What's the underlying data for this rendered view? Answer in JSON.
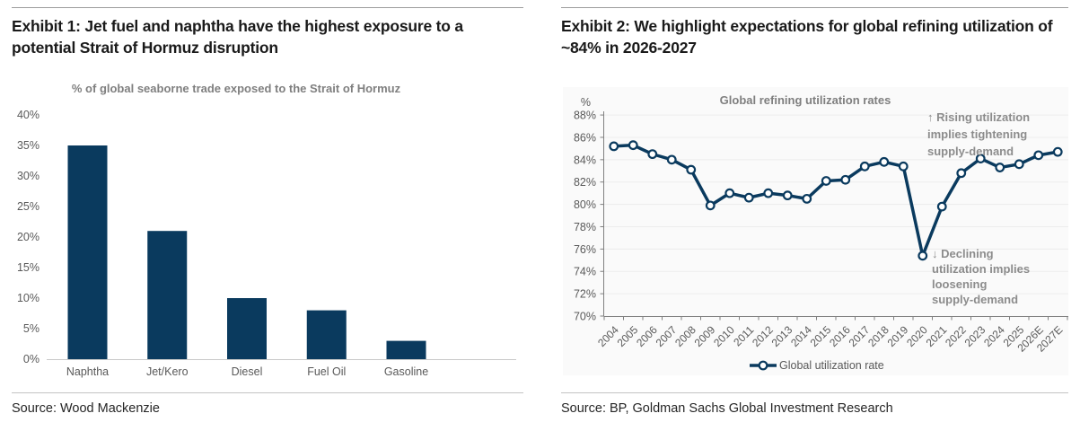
{
  "exhibit1": {
    "title": "Exhibit 1: Jet fuel and naphtha have the highest exposure to a potential Strait of Hormuz disruption",
    "source": "Source: Wood Mackenzie"
  },
  "exhibit2": {
    "title": "Exhibit 2: We highlight expectations for global refining utilization of ~84% in 2026-2027",
    "source": "Source: BP, Goldman Sachs Global Investment Research"
  },
  "colors": {
    "navy": "#0a3a5e",
    "axis_gray": "#808080",
    "label_gray": "#595959",
    "title_gray": "#7f7f7f",
    "annotation_gray": "#8c8c8c",
    "panel_bg": "#fafafa",
    "gridline": "#ededed",
    "baseline_gray": "#c9c9c9"
  },
  "chart_data": [
    {
      "type": "bar",
      "title": "% of global seaborne trade exposed to the Strait of Hormuz",
      "categories": [
        "Naphtha",
        "Jet/Kero",
        "Diesel",
        "Fuel Oil",
        "Gasoline"
      ],
      "values": [
        35,
        21,
        10,
        8,
        3
      ],
      "xlabel": "",
      "ylabel": "",
      "ylim": [
        0,
        40
      ],
      "ytick_step": 5,
      "ytick_suffix": "%",
      "grid": false,
      "legend": false
    },
    {
      "type": "line",
      "title": "Global refining utilization rates",
      "y_unit_label": "%",
      "categories": [
        "2004",
        "2005",
        "2006",
        "2007",
        "2008",
        "2009",
        "2010",
        "2011",
        "2012",
        "2013",
        "2014",
        "2015",
        "2016",
        "2017",
        "2018",
        "2019",
        "2020",
        "2021",
        "2022",
        "2023",
        "2024",
        "2025",
        "2026E",
        "2027E"
      ],
      "series": [
        {
          "name": "Global utilization rate",
          "values": [
            85.2,
            85.3,
            84.5,
            84.0,
            83.1,
            79.9,
            81.0,
            80.6,
            81.0,
            80.8,
            80.5,
            82.1,
            82.2,
            83.4,
            83.8,
            83.4,
            75.4,
            79.8,
            82.8,
            84.1,
            83.3,
            83.6,
            84.4,
            84.7
          ]
        }
      ],
      "ylim": [
        70,
        88
      ],
      "ytick_step": 2,
      "ytick_suffix": "%",
      "grid": true,
      "legend_position": "bottom",
      "annotations": [
        {
          "lines": [
            "↑  Rising utilization",
            "implies tightening",
            "supply-demand"
          ]
        },
        {
          "lines": [
            "↓  Declining",
            "utilization implies",
            "loosening",
            "supply-demand"
          ]
        }
      ]
    }
  ]
}
